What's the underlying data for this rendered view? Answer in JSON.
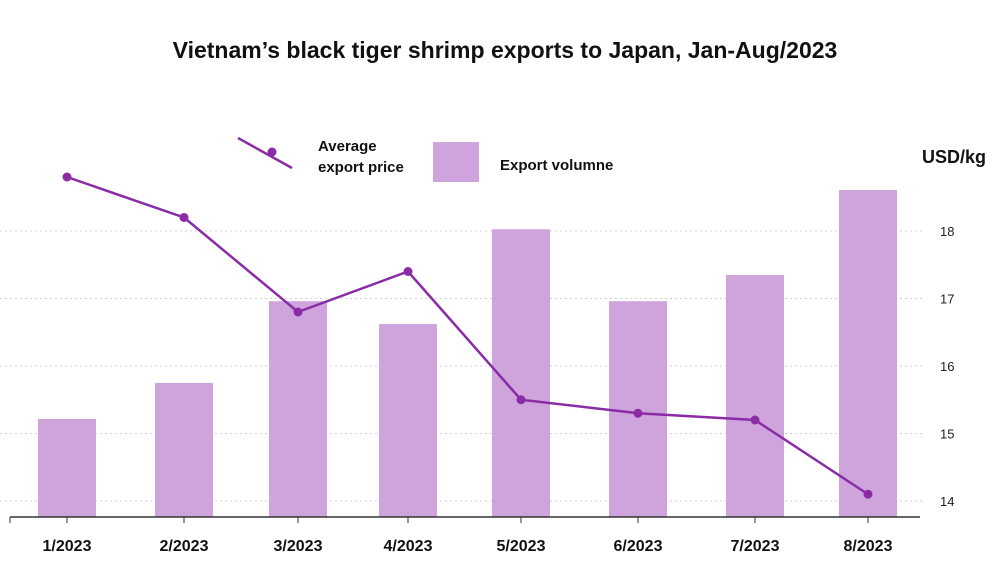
{
  "chart_data": {
    "type": "bar+line",
    "title": "Vietnam’s black tiger shrimp exports to Japan, Jan-Aug/2023",
    "categories": [
      "1/2023",
      "2/2023",
      "3/2023",
      "4/2023",
      "5/2023",
      "6/2023",
      "7/2023",
      "8/2023"
    ],
    "series": [
      {
        "name": "Export volumne",
        "type": "bar",
        "axis": "none (relative, max = 1)",
        "values": [
          0.3,
          0.41,
          0.66,
          0.59,
          0.88,
          0.66,
          0.74,
          1.0
        ]
      },
      {
        "name": "Average export price",
        "type": "line",
        "axis": "right",
        "values": [
          18.8,
          18.2,
          16.8,
          17.4,
          15.5,
          15.3,
          15.2,
          14.1
        ]
      }
    ],
    "y_right": {
      "label": "USD/kg",
      "ticks": [
        14,
        15,
        16,
        17,
        18
      ]
    },
    "grid": "horizontal dotted",
    "legend": "top",
    "colors": {
      "bar": "#cfa3dc",
      "line": "#8a2ca6"
    }
  }
}
